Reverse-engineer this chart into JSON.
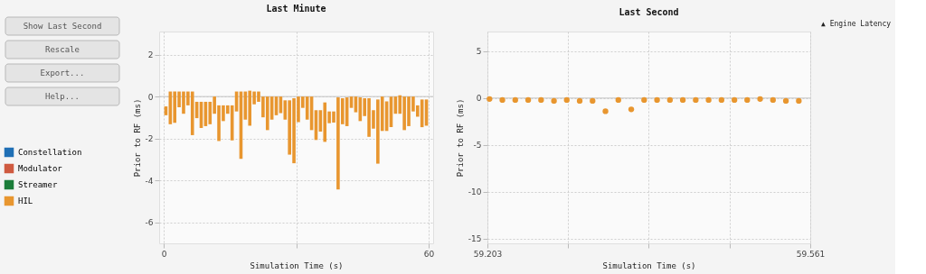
{
  "chart_data": [
    {
      "type": "bar",
      "title": "Last Minute",
      "annotations": [
        "Show Last Second",
        "Rescale",
        "Export...",
        "Help..."
      ],
      "xlabel": "Simulation Time (s)",
      "ylabel": "Prior to RF (ms)",
      "x": [
        0.5,
        1.5,
        2.5,
        3.5,
        4.5,
        5.5,
        6.5,
        7.5,
        8.5,
        9.5,
        10.5,
        11.5,
        12.5,
        13.5,
        14.5,
        15.5,
        16.5,
        17.5,
        18.5,
        19.5,
        20.5,
        21.5,
        22.5,
        23.5,
        24.5,
        25.5,
        26.5,
        27.5,
        28.5,
        29.5,
        30.5,
        31.5,
        32.5,
        33.5,
        34.5,
        35.5,
        36.5,
        37.5,
        38.5,
        39.5,
        40.5,
        41.5,
        42.5,
        43.5,
        44.5,
        45.5,
        46.5,
        47.5,
        48.5,
        49.5,
        50.5,
        51.5,
        52.5,
        53.5,
        54.5,
        55.5,
        56.5,
        57.5,
        58.5,
        59.5
      ],
      "series": [
        {
          "name": "Constellation",
          "color": "#1f6fb5",
          "values": [
            null,
            null,
            null,
            null,
            null,
            null,
            null,
            null,
            null,
            null,
            null,
            null,
            null,
            null,
            null,
            null,
            null,
            null,
            null,
            null,
            null,
            null,
            null,
            null,
            null,
            null,
            null,
            null,
            null,
            null,
            null,
            null,
            null,
            null,
            null,
            null,
            null,
            null,
            null,
            null,
            null,
            null,
            null,
            null,
            null,
            null,
            null,
            null,
            null,
            null,
            null,
            null,
            null,
            null,
            null,
            null,
            null,
            null,
            null,
            null
          ]
        },
        {
          "name": "Modulator",
          "color": "#cf5a40",
          "values": [
            null,
            null,
            null,
            null,
            null,
            null,
            null,
            null,
            null,
            null,
            null,
            null,
            null,
            null,
            null,
            null,
            null,
            null,
            null,
            null,
            null,
            null,
            null,
            null,
            null,
            null,
            null,
            null,
            null,
            null,
            null,
            null,
            null,
            null,
            null,
            null,
            null,
            null,
            null,
            null,
            null,
            null,
            null,
            null,
            null,
            null,
            null,
            null,
            null,
            null,
            null,
            null,
            null,
            null,
            null,
            null,
            null,
            null,
            null,
            null
          ]
        },
        {
          "name": "Streamer",
          "color": "#1b7d3a",
          "values": [
            null,
            null,
            null,
            null,
            null,
            null,
            null,
            null,
            null,
            null,
            null,
            null,
            null,
            null,
            null,
            null,
            null,
            null,
            null,
            null,
            null,
            null,
            null,
            null,
            null,
            null,
            null,
            null,
            null,
            null,
            null,
            null,
            null,
            null,
            null,
            null,
            null,
            null,
            null,
            null,
            null,
            null,
            null,
            null,
            null,
            null,
            null,
            null,
            null,
            null,
            null,
            null,
            null,
            null,
            null,
            null,
            null,
            null,
            null,
            null
          ]
        },
        {
          "name": "HIL",
          "color": "#e8962f",
          "base": [
            -0.89,
            -1.32,
            -1.25,
            -0.51,
            -0.82,
            -0.42,
            -1.84,
            -1.03,
            -1.5,
            -1.41,
            -1.32,
            -0.82,
            -2.12,
            -1.17,
            -0.82,
            -2.09,
            -0.71,
            -2.97,
            -1.1,
            -1.39,
            -0.37,
            -0.25,
            -0.99,
            -1.6,
            -1.1,
            -0.89,
            -0.79,
            -1.1,
            -2.77,
            -3.18,
            -1.22,
            -0.54,
            -1.1,
            -1.6,
            -2.07,
            -1.67,
            -2.16,
            -1.27,
            -1.24,
            -4.43,
            -1.32,
            -1.41,
            -0.54,
            -0.75,
            -1.17,
            -0.93,
            -1.92,
            -1.53,
            -3.2,
            -1.64,
            -1.64,
            -1.46,
            -0.82,
            -0.82,
            -1.6,
            -1.41,
            -0.71,
            -0.96,
            -1.46,
            -1.39
          ],
          "values": [
            0.42,
            1.56,
            1.49,
            0.75,
            1.06,
            0.66,
            2.08,
            0.78,
            1.25,
            1.16,
            1.07,
            0.82,
            1.7,
            0.75,
            0.4,
            1.67,
            0.95,
            3.21,
            1.34,
            1.67,
            0.61,
            0.49,
            0.99,
            1.6,
            1.1,
            0.89,
            0.79,
            0.92,
            2.59,
            3.1,
            1.22,
            0.54,
            1.1,
            1.6,
            1.42,
            1.02,
            1.88,
            0.56,
            0.53,
            4.39,
            1.24,
            1.37,
            0.54,
            0.75,
            1.13,
            0.85,
            1.84,
            0.88,
            3.06,
            1.64,
            1.41,
            1.46,
            0.82,
            0.88,
            1.6,
            1.41,
            0.71,
            0.54,
            1.32,
            1.25
          ]
        }
      ],
      "xlim": [
        0,
        60
      ],
      "xticks": [
        0,
        {
          "value": 30,
          "label": null
        },
        60
      ],
      "ylim": [
        -7,
        3.1
      ],
      "yticks": [
        -6,
        -4,
        -2,
        0,
        2
      ],
      "ref_lines": [
        {
          "axis": "y",
          "value": 0,
          "color": "#c4c4c4"
        }
      ],
      "grid": true,
      "legend": "left"
    },
    {
      "type": "scatter",
      "title": "Last Second",
      "xlabel": "Simulation Time (s)",
      "ylabel": "Prior to RF (ms)",
      "annotations": [
        "▲ Engine Latency"
      ],
      "x": [
        59.2053,
        59.2196,
        59.2339,
        59.2482,
        59.2625,
        59.2768,
        59.291,
        59.3053,
        59.3196,
        59.3339,
        59.3482,
        59.3625,
        59.3768,
        59.3911,
        59.4054,
        59.4197,
        59.434,
        59.4483,
        59.4626,
        59.4769,
        59.4911,
        59.5054,
        59.5197,
        59.534,
        59.5483
      ],
      "series": [
        {
          "color": "#e8962f",
          "values": [
            -0.1,
            -0.2,
            -0.2,
            -0.2,
            -0.2,
            -0.3,
            -0.2,
            -0.3,
            -0.3,
            -1.4,
            -0.2,
            -1.2,
            -0.2,
            -0.2,
            -0.2,
            -0.2,
            -0.2,
            -0.2,
            -0.2,
            -0.2,
            -0.2,
            -0.1,
            -0.2,
            -0.3,
            -0.3
          ]
        }
      ],
      "xlim": [
        59.203,
        59.561
      ],
      "xticks": [
        59.203,
        {
          "value": 59.2925,
          "label": null
        },
        {
          "value": 59.382,
          "label": null
        },
        {
          "value": 59.4715,
          "label": null
        },
        59.561
      ],
      "ylim": [
        -15.5,
        7.1
      ],
      "yticks": [
        -15,
        -10,
        -5,
        0,
        5
      ],
      "ref_lines": [
        {
          "axis": "y",
          "value": 0,
          "color": "#c4c4c4"
        }
      ],
      "grid": true,
      "marker": "circle"
    }
  ]
}
